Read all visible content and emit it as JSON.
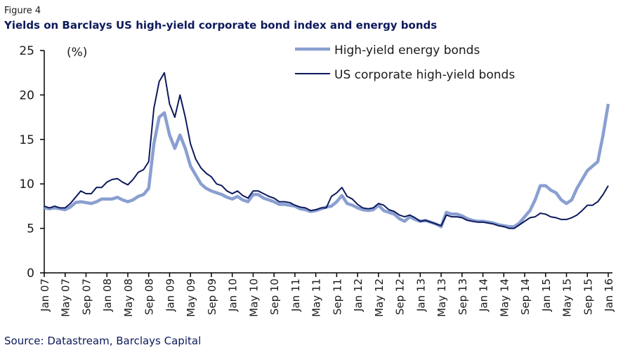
{
  "chart_data": {
    "type": "line",
    "figure_label": "Figure 4",
    "title": "Yields on Barclays US high-yield corporate bond index and energy bonds",
    "y_unit": "(%)",
    "source": "Source: Datastream, Barclays Capital",
    "ylim": [
      0,
      25
    ],
    "yticks": [
      0,
      5,
      10,
      15,
      20,
      25
    ],
    "legend": "top-right",
    "categories": [
      "Jan 07",
      null,
      null,
      null,
      "May 07",
      null,
      null,
      null,
      "Sep 07",
      null,
      null,
      null,
      "Jan 08",
      null,
      null,
      null,
      "May 08",
      null,
      null,
      null,
      "Sep 08",
      null,
      null,
      null,
      "Jan 09",
      null,
      null,
      null,
      "May 09",
      null,
      null,
      null,
      "Sep 09",
      null,
      null,
      null,
      "Jan 10",
      null,
      null,
      null,
      "May 10",
      null,
      null,
      null,
      "Sep 10",
      null,
      null,
      null,
      "Jan 11",
      null,
      null,
      null,
      "May 11",
      null,
      null,
      null,
      "Sep 11",
      null,
      null,
      null,
      "Jan 12",
      null,
      null,
      null,
      "May 12",
      null,
      null,
      null,
      "Sep 12",
      null,
      null,
      null,
      "Jan 13",
      null,
      null,
      null,
      "May 13",
      null,
      null,
      null,
      "Sep 13",
      null,
      null,
      null,
      "Jan 14",
      null,
      null,
      null,
      "May 14",
      null,
      null,
      null,
      "Sep 14",
      null,
      null,
      null,
      "Jan 15",
      null,
      null,
      null,
      "May 15",
      null,
      null,
      null,
      "Sep 15",
      null,
      null,
      null,
      "Jan 16"
    ],
    "series": [
      {
        "name": "High-yield energy bonds",
        "color": "#8a9fd1",
        "width": 4.5,
        "values": [
          7.3,
          7.2,
          7.3,
          7.2,
          7.1,
          7.4,
          7.9,
          8.0,
          7.9,
          7.8,
          8.0,
          8.3,
          8.3,
          8.3,
          8.5,
          8.2,
          8.0,
          8.2,
          8.6,
          8.8,
          9.5,
          14.5,
          17.5,
          18.0,
          15.5,
          14.0,
          15.5,
          14.0,
          12.0,
          11.0,
          10.0,
          9.5,
          9.2,
          9.0,
          8.8,
          8.5,
          8.3,
          8.6,
          8.2,
          8.0,
          8.8,
          8.8,
          8.4,
          8.2,
          8.0,
          7.7,
          7.7,
          7.6,
          7.5,
          7.2,
          7.1,
          6.9,
          7.0,
          7.2,
          7.4,
          7.5,
          8.0,
          8.7,
          7.8,
          7.6,
          7.3,
          7.1,
          7.0,
          7.1,
          7.6,
          7.0,
          6.8,
          6.6,
          6.1,
          5.8,
          6.3,
          6.0,
          5.8,
          5.9,
          5.7,
          5.5,
          5.2,
          6.8,
          6.6,
          6.6,
          6.4,
          6.1,
          5.9,
          5.8,
          5.8,
          5.7,
          5.6,
          5.4,
          5.3,
          5.2,
          5.2,
          5.6,
          6.3,
          7.0,
          8.2,
          9.8,
          9.8,
          9.3,
          9.0,
          8.2,
          7.8,
          8.2,
          9.5,
          10.5,
          11.5,
          12.0,
          12.5,
          15.5,
          19.0
        ]
      },
      {
        "name": "US corporate high-yield bonds",
        "color": "#0d1a5c",
        "width": 2,
        "values": [
          7.5,
          7.3,
          7.5,
          7.3,
          7.3,
          7.8,
          8.5,
          9.2,
          8.9,
          8.9,
          9.6,
          9.6,
          10.2,
          10.5,
          10.6,
          10.2,
          9.9,
          10.5,
          11.3,
          11.6,
          12.5,
          18.5,
          21.5,
          22.5,
          19.0,
          17.5,
          20.0,
          17.5,
          14.5,
          12.8,
          11.8,
          11.2,
          10.8,
          10.0,
          9.8,
          9.2,
          8.9,
          9.2,
          8.7,
          8.4,
          9.2,
          9.2,
          8.9,
          8.6,
          8.4,
          8.0,
          8.0,
          7.9,
          7.6,
          7.4,
          7.3,
          7.0,
          7.1,
          7.3,
          7.3,
          8.6,
          9.0,
          9.6,
          8.6,
          8.3,
          7.7,
          7.3,
          7.2,
          7.3,
          7.8,
          7.6,
          7.1,
          6.9,
          6.5,
          6.3,
          6.5,
          6.2,
          5.8,
          5.9,
          5.7,
          5.5,
          5.3,
          6.5,
          6.3,
          6.3,
          6.2,
          5.9,
          5.8,
          5.7,
          5.7,
          5.6,
          5.5,
          5.3,
          5.2,
          5.0,
          5.0,
          5.4,
          5.8,
          6.2,
          6.3,
          6.7,
          6.6,
          6.3,
          6.2,
          6.0,
          6.0,
          6.2,
          6.5,
          7.0,
          7.6,
          7.6,
          8.0,
          8.8,
          9.8
        ]
      }
    ]
  }
}
